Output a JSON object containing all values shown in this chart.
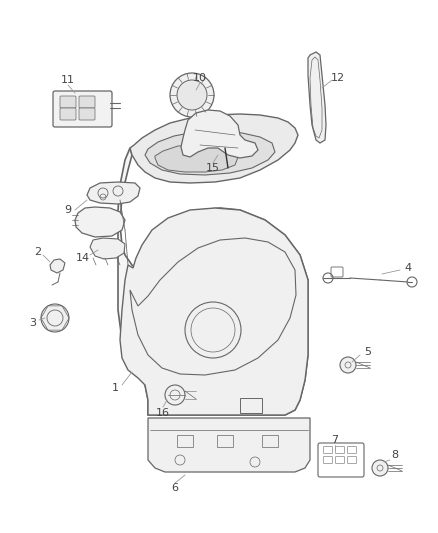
{
  "background_color": "#ffffff",
  "line_color": "#666666",
  "text_color": "#444444",
  "fig_width": 4.38,
  "fig_height": 5.33,
  "dpi": 100
}
